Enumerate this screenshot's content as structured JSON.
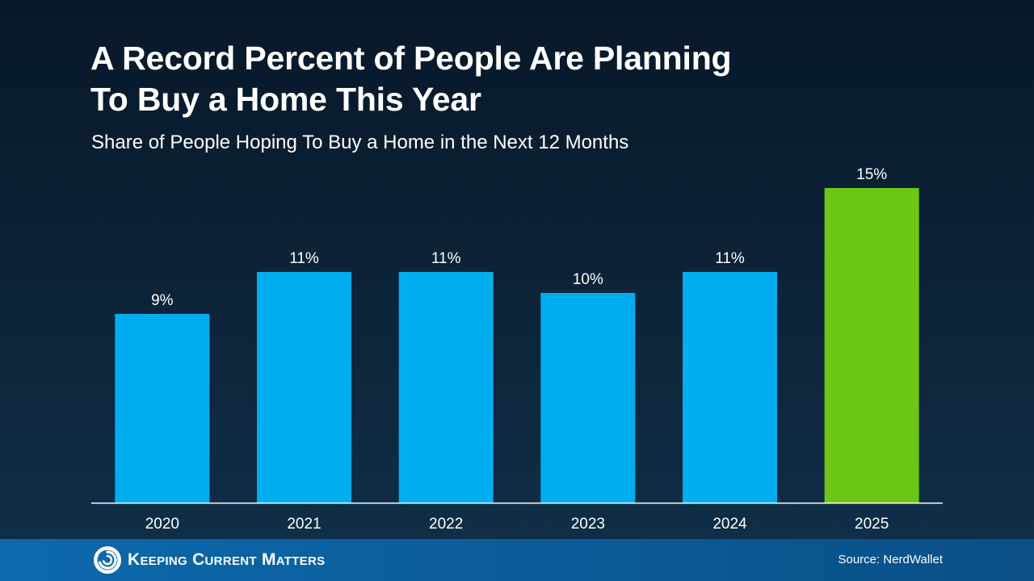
{
  "title_line1": "A Record Percent of People Are Planning",
  "title_line2": "To Buy a Home This Year",
  "subtitle": "Share of People Hoping To Buy a Home in the Next 12 Months",
  "footer": {
    "brand": "Keeping Current Matters",
    "source": "Source: NerdWallet",
    "logo_icon": "swirl-logo-icon"
  },
  "colors": {
    "bar": "#00aeef",
    "highlight_bar": "#6dc614",
    "footer": "#0d69ad"
  },
  "chart_data": {
    "type": "bar",
    "categories": [
      "2020",
      "2021",
      "2022",
      "2023",
      "2024",
      "2025"
    ],
    "values": [
      9,
      11,
      11,
      10,
      11,
      15
    ],
    "value_labels": [
      "9%",
      "11%",
      "11%",
      "10%",
      "11%",
      "15%"
    ],
    "highlight_index": 5,
    "ylim": [
      0,
      15
    ],
    "grid": false,
    "legend": "none",
    "xlabel": "",
    "ylabel": ""
  }
}
